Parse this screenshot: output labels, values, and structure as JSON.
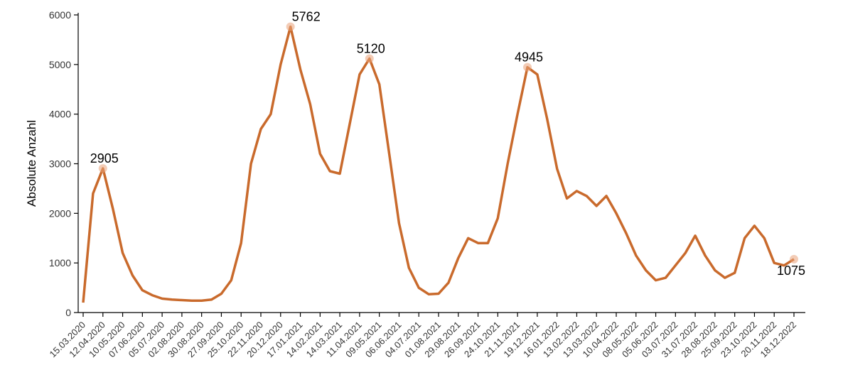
{
  "chart_data": {
    "type": "line",
    "y_label": "Absolute Anzahl",
    "x": [
      "15.03.2020",
      "29.03.2020",
      "12.04.2020",
      "26.04.2020",
      "10.05.2020",
      "24.05.2020",
      "07.06.2020",
      "21.06.2020",
      "05.07.2020",
      "19.07.2020",
      "02.08.2020",
      "16.08.2020",
      "30.08.2020",
      "13.09.2020",
      "27.09.2020",
      "11.10.2020",
      "25.10.2020",
      "08.11.2020",
      "22.11.2020",
      "06.12.2020",
      "20.12.2020",
      "03.01.2021",
      "17.01.2021",
      "31.01.2021",
      "14.02.2021",
      "28.02.2021",
      "14.03.2021",
      "28.03.2021",
      "11.04.2021",
      "25.04.2021",
      "09.05.2021",
      "23.05.2021",
      "06.06.2021",
      "20.06.2021",
      "04.07.2021",
      "18.07.2021",
      "01.08.2021",
      "15.08.2021",
      "29.08.2021",
      "12.09.2021",
      "26.09.2021",
      "10.10.2021",
      "24.10.2021",
      "07.11.2021",
      "21.11.2021",
      "05.12.2021",
      "19.12.2021",
      "02.01.2022",
      "16.01.2022",
      "30.01.2022",
      "13.02.2022",
      "27.02.2022",
      "13.03.2022",
      "27.03.2022",
      "10.04.2022",
      "24.04.2022",
      "08.05.2022",
      "22.05.2022",
      "05.06.2022",
      "19.06.2022",
      "03.07.2022",
      "17.07.2022",
      "31.07.2022",
      "14.08.2022",
      "28.08.2022",
      "11.09.2022",
      "25.09.2022",
      "09.10.2022",
      "23.10.2022",
      "06.11.2022",
      "20.11.2022",
      "04.12.2022",
      "18.12.2022"
    ],
    "series": [
      {
        "color": "#c96a2c",
        "values": [
          200,
          2400,
          2905,
          2100,
          1200,
          750,
          450,
          350,
          280,
          260,
          250,
          240,
          240,
          260,
          380,
          650,
          1400,
          3000,
          3700,
          4000,
          5000,
          5762,
          4900,
          4200,
          3200,
          2850,
          2800,
          3800,
          4800,
          5120,
          4600,
          3200,
          1800,
          900,
          500,
          370,
          380,
          600,
          1100,
          1500,
          1400,
          1400,
          1900,
          3000,
          4000,
          4945,
          4800,
          3900,
          2900,
          2300,
          2450,
          2350,
          2150,
          2350,
          2000,
          1600,
          1150,
          850,
          650,
          700,
          950,
          1200,
          1550,
          1150,
          850,
          700,
          800,
          1500,
          1750,
          1500,
          1000,
          950,
          1075
        ]
      }
    ],
    "annotations": [
      {
        "x": "12.04.2020",
        "y": 2905
      },
      {
        "x": "03.01.2021",
        "y": 5762
      },
      {
        "x": "25.04.2021",
        "y": 5120
      },
      {
        "x": "05.12.2021",
        "y": 4945
      },
      {
        "x": "18.12.2022",
        "y": 1075
      }
    ],
    "xlim": [
      "15.03.2020",
      "18.12.2022"
    ],
    "xticks": [
      "15.03.2020",
      "12.04.2020",
      "10.05.2020",
      "07.06.2020",
      "05.07.2020",
      "02.08.2020",
      "30.08.2020",
      "27.09.2020",
      "25.10.2020",
      "22.11.2020",
      "20.12.2020",
      "17.01.2021",
      "14.02.2021",
      "14.03.2021",
      "11.04.2021",
      "09.05.2021",
      "06.06.2021",
      "04.07.2021",
      "01.08.2021",
      "29.08.2021",
      "26.09.2021",
      "24.10.2021",
      "21.11.2021",
      "19.12.2021",
      "16.01.2022",
      "13.02.2022",
      "13.03.2022",
      "10.04.2022",
      "08.05.2022",
      "05.06.2022",
      "03.07.2022",
      "31.07.2022",
      "28.08.2022",
      "25.09.2022",
      "23.10.2022",
      "20.11.2022",
      "18.12.2022"
    ],
    "ylim": [
      0,
      6000
    ],
    "yticks": [
      0,
      1000,
      2000,
      3000,
      4000,
      5000,
      6000
    ],
    "grid": false
  }
}
